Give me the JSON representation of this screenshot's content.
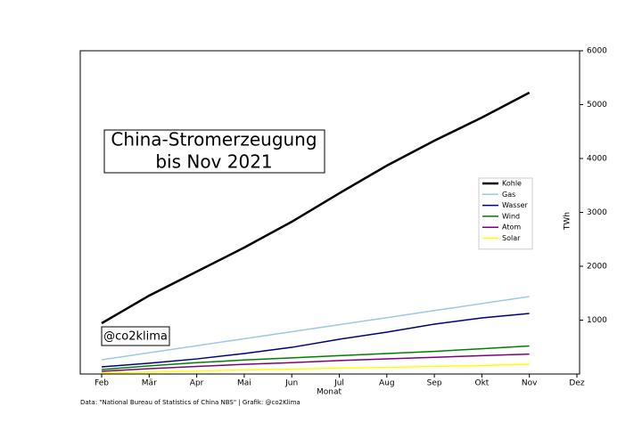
{
  "chart_data": {
    "type": "line",
    "title": [
      "China-Stromerzeugung",
      "bis Nov 2021"
    ],
    "annotation": "@co2klima",
    "x_label": "Monat",
    "y_label": "TWh",
    "source": "Data: \"National Bureau of Statistics of China NBS\" | Grafik: @co2Klima",
    "categories": [
      "Feb",
      "Mär",
      "Apr",
      "Mai",
      "Jun",
      "Jul",
      "Aug",
      "Sep",
      "Okt",
      "Nov",
      "Dez"
    ],
    "series": [
      {
        "name": "Kohle",
        "color": "#000000",
        "width": 2.5,
        "values": [
          942,
          1455,
          1900,
          2347,
          2826,
          3355,
          3868,
          4331,
          4760,
          5223,
          null
        ]
      },
      {
        "name": "Gas",
        "color": "#9ecae1",
        "width": 1.5,
        "values": [
          264,
          395,
          525,
          655,
          786,
          916,
          1046,
          1177,
          1307,
          1438,
          null
        ]
      },
      {
        "name": "Wasser",
        "color": "#00007f",
        "width": 1.5,
        "values": [
          132,
          200,
          280,
          380,
          495,
          645,
          777,
          925,
          1041,
          1124,
          null
        ]
      },
      {
        "name": "Wind",
        "color": "#007f00",
        "width": 1.5,
        "values": [
          83,
          150,
          210,
          260,
          300,
          340,
          380,
          420,
          470,
          520,
          null
        ]
      },
      {
        "name": "Atom",
        "color": "#7f007f",
        "width": 1.5,
        "values": [
          50,
          100,
          140,
          180,
          210,
          250,
          280,
          310,
          340,
          370,
          null
        ]
      },
      {
        "name": "Solar",
        "color": "#ffff00",
        "width": 1.5,
        "values": [
          20,
          35,
          55,
          75,
          90,
          110,
          125,
          140,
          160,
          180,
          null
        ]
      }
    ],
    "ylim": [
      0,
      6000
    ],
    "yticks": [
      1000,
      2000,
      3000,
      4000,
      5000,
      6000
    ],
    "y_axis_side": "right",
    "legend": "right"
  }
}
